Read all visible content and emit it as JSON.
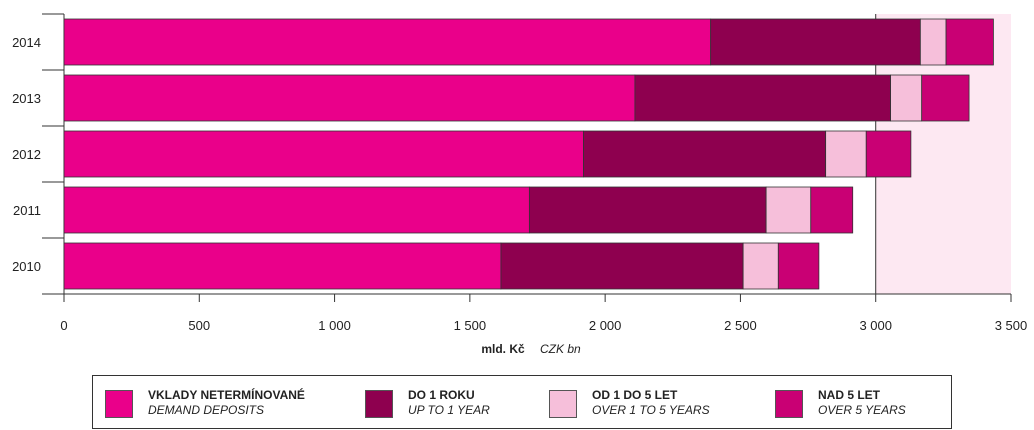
{
  "chart_data": {
    "type": "bar",
    "orientation": "horizontal",
    "stacked": true,
    "categories": [
      "2014",
      "2013",
      "2012",
      "2011",
      "2010"
    ],
    "series": [
      {
        "name": "VKLADY NETERMÍNOVANÉ",
        "name_en": "DEMAND DEPOSITS",
        "color": "#ea008a",
        "values": [
          2390,
          2110,
          1920,
          1720,
          1615
        ]
      },
      {
        "name": "DO 1 ROKU",
        "name_en": "UP TO 1 YEAR",
        "color": "#8e004f",
        "values": [
          775,
          945,
          895,
          875,
          895
        ]
      },
      {
        "name": "OD 1 DO 5 LET",
        "name_en": "OVER 1 TO 5 YEARS",
        "color": "#f6bfda",
        "values": [
          95,
          115,
          150,
          165,
          130
        ]
      },
      {
        "name": "NAD 5 LET",
        "name_en": "OVER 5 YEARS",
        "color": "#c90074",
        "values": [
          175,
          175,
          165,
          155,
          150
        ]
      }
    ],
    "xlim": [
      0,
      3500
    ],
    "xticks": [
      0,
      500,
      1000,
      1500,
      2000,
      2500,
      3000,
      3500
    ],
    "xtick_labels": [
      "0",
      "500",
      "1 000",
      "1 500",
      "2 000",
      "2 500",
      "3 000",
      "3 500"
    ],
    "xlabel": "mld. Kč",
    "xlabel_en": "CZK bn",
    "highlight_region": [
      3000,
      3500
    ],
    "highlight_color": "#fde8f2",
    "reference_line": 3000,
    "legend_position": "bottom"
  }
}
